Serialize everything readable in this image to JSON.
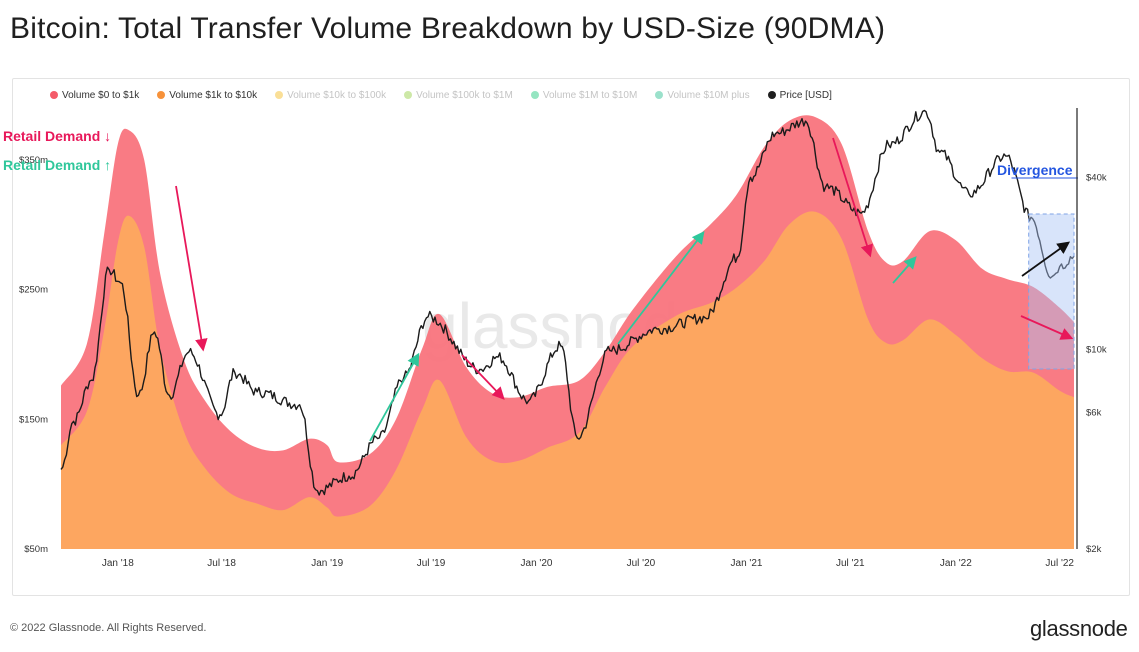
{
  "title": "Bitcoin: Total Transfer Volume Breakdown by USD-Size (90DMA)",
  "footer": {
    "copyright": "© 2022 Glassnode. All Rights Reserved.",
    "brand": "glassnode"
  },
  "watermark": "glassnode",
  "chart_data": {
    "type": "area",
    "legend_placement": "top-left",
    "grid": false,
    "legend": [
      {
        "label": "Volume $0 to $1k",
        "color": "#f45b69",
        "active": true
      },
      {
        "label": "Volume $1k to $10k",
        "color": "#f7923a",
        "active": true
      },
      {
        "label": "Volume $10k to $100k",
        "color": "#f5c542",
        "active": false
      },
      {
        "label": "Volume $100k to $1M",
        "color": "#a4d65e",
        "active": false
      },
      {
        "label": "Volume $1M to $10M",
        "color": "#3ecf8e",
        "active": false
      },
      {
        "label": "Volume $10M plus",
        "color": "#49c9a0",
        "active": false
      },
      {
        "label": "Price [USD]",
        "color": "#1f1f1f",
        "active": true
      }
    ],
    "x_ticks": [
      "Jan '18",
      "Jul '18",
      "Jan '19",
      "Jul '19",
      "Jan '20",
      "Jul '20",
      "Jan '21",
      "Jul '21",
      "Jan '22",
      "Jul '22"
    ],
    "y_left_ticks": [
      "$350m",
      "$250m",
      "$150m",
      "$50m"
    ],
    "y_right_ticks": [
      "$40k",
      "$10k",
      "$6k",
      "$2k"
    ],
    "y_left_range_usd_m": [
      50,
      390
    ],
    "y_right_scale": "log",
    "y_right_range_usd": [
      2000,
      70000
    ],
    "series": [
      {
        "name": "Volume $0 to $1k",
        "unit": "USD millions (stacked total)",
        "points": [
          [
            "2017-09-24",
            176
          ],
          [
            "2017-11-08",
            208
          ],
          [
            "2017-12-08",
            292
          ],
          [
            "2018-01-01",
            362
          ],
          [
            "2018-01-20",
            373
          ],
          [
            "2018-02-16",
            350
          ],
          [
            "2018-03-16",
            262
          ],
          [
            "2018-04-26",
            196
          ],
          [
            "2018-06-01",
            165
          ],
          [
            "2018-07-16",
            141
          ],
          [
            "2018-09-01",
            128
          ],
          [
            "2018-10-16",
            126
          ],
          [
            "2018-12-01",
            135
          ],
          [
            "2019-01-01",
            130
          ],
          [
            "2019-01-20",
            117
          ],
          [
            "2019-03-16",
            123
          ],
          [
            "2019-05-01",
            150
          ],
          [
            "2019-06-16",
            205
          ],
          [
            "2019-07-16",
            231
          ],
          [
            "2019-09-01",
            190
          ],
          [
            "2019-10-16",
            170
          ],
          [
            "2019-12-01",
            167
          ],
          [
            "2020-01-20",
            175
          ],
          [
            "2020-03-16",
            180
          ],
          [
            "2020-05-01",
            203
          ],
          [
            "2020-06-16",
            234
          ],
          [
            "2020-09-01",
            276
          ],
          [
            "2020-11-01",
            301
          ],
          [
            "2020-12-16",
            324
          ],
          [
            "2021-02-01",
            360
          ],
          [
            "2021-03-16",
            380
          ],
          [
            "2021-05-01",
            383
          ],
          [
            "2021-06-16",
            362
          ],
          [
            "2021-08-01",
            295
          ],
          [
            "2021-09-01",
            271
          ],
          [
            "2021-10-01",
            272
          ],
          [
            "2021-11-16",
            295
          ],
          [
            "2022-01-01",
            288
          ],
          [
            "2022-02-16",
            266
          ],
          [
            "2022-04-01",
            258
          ],
          [
            "2022-05-16",
            252
          ],
          [
            "2022-07-01",
            236
          ],
          [
            "2022-07-26",
            225
          ]
        ]
      },
      {
        "name": "Volume $1k to $10k",
        "unit": "USD millions (stacked)",
        "points": [
          [
            "2017-09-24",
            130
          ],
          [
            "2017-11-08",
            156
          ],
          [
            "2017-12-08",
            218
          ],
          [
            "2018-01-01",
            286
          ],
          [
            "2018-01-20",
            307
          ],
          [
            "2018-02-16",
            283
          ],
          [
            "2018-03-16",
            204
          ],
          [
            "2018-04-26",
            141
          ],
          [
            "2018-06-01",
            113
          ],
          [
            "2018-07-16",
            93
          ],
          [
            "2018-09-01",
            85
          ],
          [
            "2018-10-16",
            80
          ],
          [
            "2018-12-01",
            90
          ],
          [
            "2019-01-01",
            82
          ],
          [
            "2019-01-20",
            75
          ],
          [
            "2019-03-16",
            83
          ],
          [
            "2019-05-01",
            111
          ],
          [
            "2019-06-16",
            158
          ],
          [
            "2019-07-16",
            180
          ],
          [
            "2019-09-01",
            136
          ],
          [
            "2019-10-16",
            118
          ],
          [
            "2019-12-01",
            118
          ],
          [
            "2020-01-20",
            128
          ],
          [
            "2020-03-16",
            140
          ],
          [
            "2020-05-01",
            176
          ],
          [
            "2020-06-16",
            206
          ],
          [
            "2020-09-01",
            230
          ],
          [
            "2020-11-01",
            240
          ],
          [
            "2020-12-16",
            252
          ],
          [
            "2021-02-01",
            272
          ],
          [
            "2021-03-16",
            300
          ],
          [
            "2021-05-01",
            310
          ],
          [
            "2021-06-16",
            289
          ],
          [
            "2021-08-01",
            227
          ],
          [
            "2021-09-01",
            209
          ],
          [
            "2021-10-01",
            211
          ],
          [
            "2021-11-16",
            227
          ],
          [
            "2022-01-01",
            215
          ],
          [
            "2022-02-16",
            197
          ],
          [
            "2022-04-01",
            187
          ],
          [
            "2022-05-16",
            186
          ],
          [
            "2022-07-01",
            172
          ],
          [
            "2022-07-26",
            167
          ]
        ]
      },
      {
        "name": "Price [USD]",
        "unit": "USD",
        "points": [
          [
            "2017-09-24",
            3800
          ],
          [
            "2017-10-16",
            5600
          ],
          [
            "2017-11-16",
            7800
          ],
          [
            "2017-12-17",
            19000
          ],
          [
            "2018-01-06",
            17100
          ],
          [
            "2018-02-06",
            6900
          ],
          [
            "2018-03-06",
            11500
          ],
          [
            "2018-04-01",
            6900
          ],
          [
            "2018-05-05",
            9800
          ],
          [
            "2018-06-28",
            5900
          ],
          [
            "2018-07-24",
            8300
          ],
          [
            "2018-09-01",
            7100
          ],
          [
            "2018-11-14",
            6400
          ],
          [
            "2018-12-15",
            3200
          ],
          [
            "2019-02-08",
            3600
          ],
          [
            "2019-04-02",
            4900
          ],
          [
            "2019-05-15",
            8000
          ],
          [
            "2019-06-26",
            13000
          ],
          [
            "2019-09-24",
            8500
          ],
          [
            "2019-10-26",
            9400
          ],
          [
            "2019-12-18",
            6600
          ],
          [
            "2020-02-12",
            10300
          ],
          [
            "2020-03-12",
            4900
          ],
          [
            "2020-05-08",
            9900
          ],
          [
            "2020-08-01",
            11800
          ],
          [
            "2020-10-21",
            12900
          ],
          [
            "2020-12-16",
            21000
          ],
          [
            "2021-01-08",
            40000
          ],
          [
            "2021-02-21",
            57000
          ],
          [
            "2021-04-14",
            63000
          ],
          [
            "2021-05-19",
            37000
          ],
          [
            "2021-07-20",
            30000
          ],
          [
            "2021-09-06",
            52000
          ],
          [
            "2021-11-10",
            68000
          ],
          [
            "2021-12-04",
            49000
          ],
          [
            "2022-01-24",
            35000
          ],
          [
            "2022-03-29",
            47500
          ],
          [
            "2022-05-12",
            29000
          ],
          [
            "2022-06-18",
            18000
          ],
          [
            "2022-07-01",
            19500
          ],
          [
            "2022-07-26",
            21200
          ]
        ]
      }
    ],
    "annotations": [
      {
        "text": "Retail Demand ↓",
        "color": "#e8185a"
      },
      {
        "text": "Retail Demand ↑",
        "color": "#2fc79b"
      },
      {
        "text": "Divergence",
        "color": "#2456e0"
      }
    ]
  }
}
